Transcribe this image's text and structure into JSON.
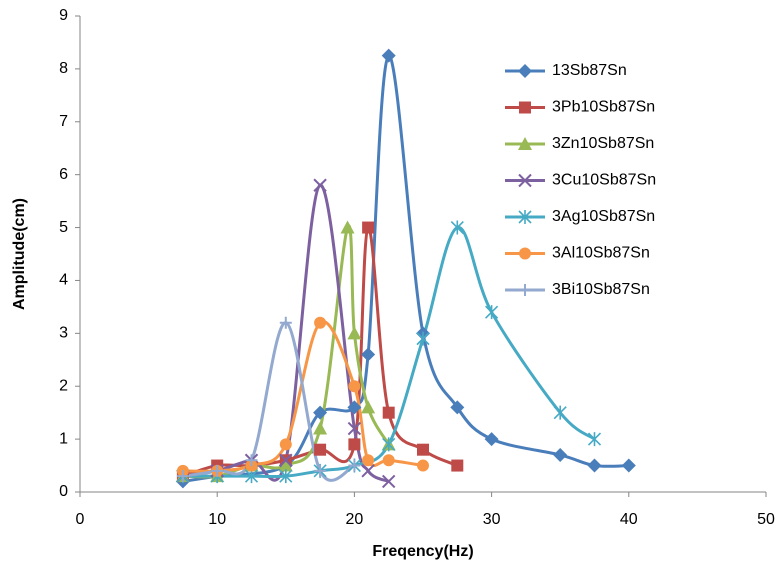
{
  "chart_data": {
    "type": "scatter",
    "x_label": "Freqency(Hz)",
    "y_label": "Amplitude(cm)",
    "xlim": [
      0,
      50
    ],
    "xticks": [
      0,
      10,
      20,
      30,
      40,
      50
    ],
    "ylim": [
      0,
      9
    ],
    "yticks": [
      0,
      1,
      2,
      3,
      4,
      5,
      6,
      7,
      8,
      9
    ],
    "grid": false,
    "legend": "right",
    "series": [
      {
        "name": "13Sb87Sn",
        "color": "#4a7ebb",
        "marker": "diamond",
        "x": [
          7.5,
          10,
          15,
          17.5,
          20,
          21,
          22.5,
          25,
          27.5,
          30,
          35,
          37.5,
          40
        ],
        "values": [
          0.2,
          0.3,
          0.5,
          1.5,
          1.6,
          2.6,
          8.25,
          3.0,
          1.6,
          1.0,
          0.7,
          0.5,
          0.5
        ]
      },
      {
        "name": "3Pb10Sb87Sn",
        "color": "#be4b48",
        "marker": "square",
        "x": [
          7.5,
          10,
          12.5,
          15,
          17.5,
          20,
          21,
          22.5,
          25,
          27.5
        ],
        "values": [
          0.3,
          0.5,
          0.5,
          0.6,
          0.8,
          0.9,
          5.0,
          1.5,
          0.8,
          0.5
        ]
      },
      {
        "name": "3Zn10Sb87Sn",
        "color": "#98b954",
        "marker": "triangle",
        "x": [
          7.5,
          10,
          12.5,
          15,
          17.5,
          19.5,
          20,
          21,
          22.5
        ],
        "values": [
          0.3,
          0.3,
          0.5,
          0.5,
          1.2,
          5.0,
          3.0,
          1.6,
          0.9
        ]
      },
      {
        "name": "3Cu10Sb87Sn",
        "color": "#7d60a0",
        "marker": "x",
        "x": [
          7.5,
          10,
          12.5,
          15,
          17.5,
          20,
          21,
          22.5
        ],
        "values": [
          0.3,
          0.4,
          0.6,
          0.6,
          5.8,
          1.2,
          0.4,
          0.2
        ]
      },
      {
        "name": "3Ag10Sb87Sn",
        "color": "#46aac5",
        "marker": "asterisk",
        "x": [
          7.5,
          10,
          12.5,
          15,
          17.5,
          20,
          22.5,
          25,
          27.5,
          30,
          35,
          37.5
        ],
        "values": [
          0.3,
          0.3,
          0.3,
          0.3,
          0.4,
          0.5,
          0.9,
          2.9,
          5.0,
          3.4,
          1.5,
          1.0
        ]
      },
      {
        "name": "3Al10Sb87Sn",
        "color": "#f79646",
        "marker": "circle",
        "x": [
          7.5,
          10,
          12.5,
          15,
          17.5,
          20,
          21,
          22.5,
          25
        ],
        "values": [
          0.4,
          0.4,
          0.5,
          0.9,
          3.2,
          2.0,
          0.6,
          0.6,
          0.5
        ]
      },
      {
        "name": "3Bi10Sb87Sn",
        "color": "#93a9cf",
        "marker": "plus",
        "x": [
          7.5,
          10,
          12.5,
          15,
          17.5,
          20
        ],
        "values": [
          0.3,
          0.4,
          0.6,
          3.2,
          0.4,
          0.5
        ]
      }
    ]
  }
}
